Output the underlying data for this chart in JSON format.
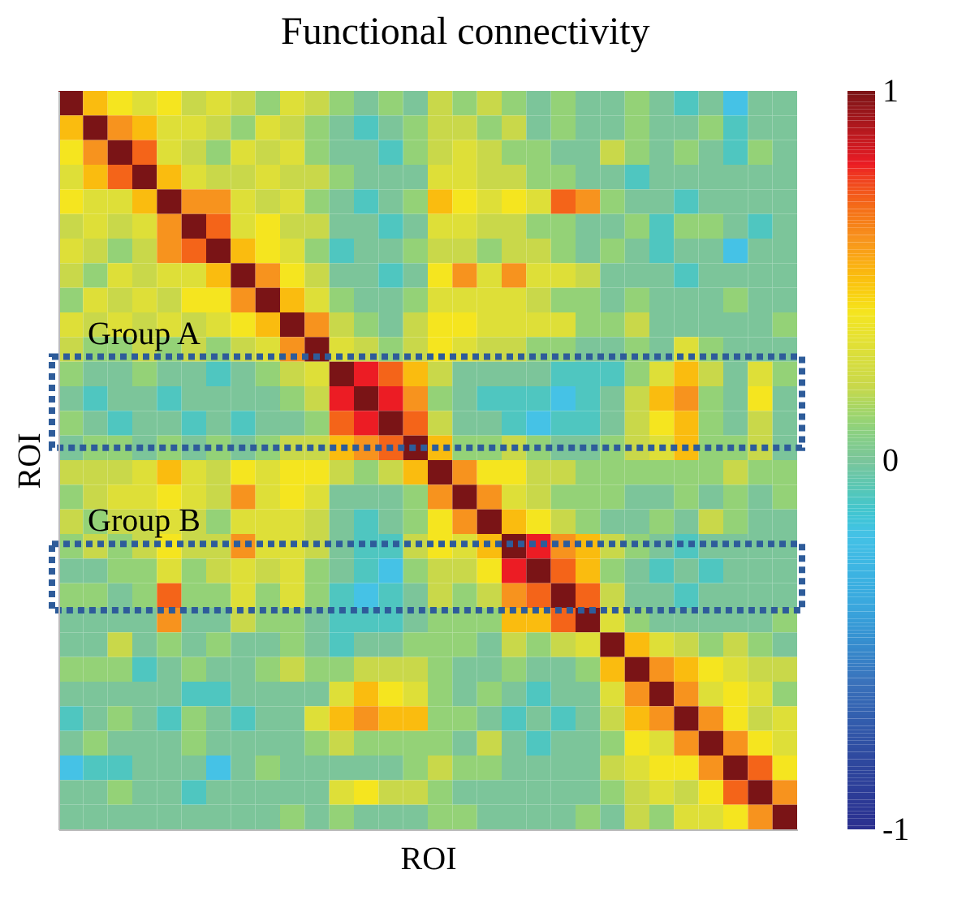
{
  "chart_data": {
    "type": "heatmap",
    "title": "Functional connectivity",
    "xlabel": "ROI",
    "ylabel": "ROI",
    "categories": [
      null,
      null,
      null,
      null,
      null,
      null,
      null,
      null,
      null,
      null,
      null,
      null,
      null,
      null,
      null,
      null,
      null,
      null,
      null,
      null,
      null,
      null,
      null,
      null,
      null,
      null,
      null,
      null,
      null,
      null
    ],
    "y_categories": [
      null,
      null,
      null,
      null,
      null,
      null,
      null,
      null,
      null,
      null,
      null,
      null,
      null,
      null,
      null,
      null,
      null,
      null,
      null,
      null,
      null,
      null,
      null,
      null,
      null,
      null,
      null,
      null,
      null,
      null
    ],
    "cells": [
      [
        1,
        0.5,
        0.4,
        0.3,
        0.4,
        0.2,
        0.3,
        0.2,
        0.1,
        0.3,
        0.2,
        0.1,
        0,
        0.1,
        0,
        0.2,
        0.1,
        0.2,
        0.1,
        0,
        0.1,
        0,
        0,
        0.1,
        0,
        -0.1,
        0,
        -0.2,
        0,
        0
      ],
      [
        0.5,
        1,
        0.6,
        0.5,
        0.3,
        0.3,
        0.2,
        0.1,
        0.3,
        0.2,
        0.1,
        0,
        -0.1,
        0,
        0.1,
        0.2,
        0.2,
        0.1,
        0.2,
        0,
        0.1,
        0,
        0,
        0.1,
        0,
        0,
        0.1,
        -0.1,
        0,
        0
      ],
      [
        0.4,
        0.6,
        1,
        0.7,
        0.3,
        0.2,
        0.1,
        0.3,
        0.2,
        0.3,
        0.1,
        0,
        0,
        -0.1,
        0.1,
        0.2,
        0.3,
        0.2,
        0.1,
        0.1,
        0,
        0,
        0.2,
        0.1,
        0,
        0.1,
        0,
        -0.1,
        0.1,
        0
      ],
      [
        0.3,
        0.5,
        0.7,
        1,
        0.5,
        0.3,
        0.2,
        0.2,
        0.3,
        0.2,
        0.2,
        0.1,
        0,
        0,
        0,
        0.3,
        0.3,
        0.2,
        0.2,
        0.1,
        0.1,
        0,
        0,
        -0.1,
        0,
        0,
        0,
        0,
        0,
        0
      ],
      [
        0.4,
        0.3,
        0.3,
        0.5,
        1,
        0.6,
        0.6,
        0.3,
        0.2,
        0.3,
        0.1,
        0,
        -0.1,
        0,
        0.1,
        0.5,
        0.4,
        0.3,
        0.4,
        0.3,
        0.7,
        0.6,
        0.1,
        0,
        0,
        -0.1,
        0,
        0,
        0,
        0
      ],
      [
        0.2,
        0.3,
        0.2,
        0.3,
        0.6,
        1,
        0.7,
        0.3,
        0.4,
        0.2,
        0.2,
        0,
        0,
        -0.1,
        0,
        0.3,
        0.3,
        0.2,
        0.2,
        0.1,
        0.1,
        0,
        0,
        0.1,
        -0.1,
        0.1,
        0.1,
        0,
        -0.1,
        0
      ],
      [
        0.3,
        0.2,
        0.1,
        0.2,
        0.6,
        0.7,
        1,
        0.5,
        0.4,
        0.3,
        0.1,
        -0.1,
        0,
        0,
        0.1,
        0.2,
        0.2,
        0.1,
        0.2,
        0.2,
        0.1,
        0,
        0.1,
        0,
        -0.1,
        0,
        0,
        -0.2,
        0,
        0
      ],
      [
        0.2,
        0.1,
        0.3,
        0.2,
        0.3,
        0.3,
        0.5,
        1,
        0.6,
        0.4,
        0.2,
        0,
        0,
        -0.1,
        0,
        0.4,
        0.6,
        0.3,
        0.6,
        0.3,
        0.3,
        0.2,
        0,
        0,
        0,
        -0.1,
        0,
        0,
        0,
        0
      ],
      [
        0.1,
        0.3,
        0.2,
        0.3,
        0.2,
        0.4,
        0.4,
        0.6,
        1,
        0.5,
        0.3,
        0.1,
        0,
        0,
        0.1,
        0.3,
        0.3,
        0.3,
        0.3,
        0.2,
        0.1,
        0.1,
        0,
        0.1,
        0,
        0,
        0,
        0.1,
        0,
        0
      ],
      [
        0.3,
        0.2,
        0.3,
        0.2,
        0.3,
        0.2,
        0.3,
        0.4,
        0.5,
        1,
        0.6,
        0.2,
        0.1,
        0,
        0.2,
        0.4,
        0.4,
        0.3,
        0.3,
        0.3,
        0.3,
        0.1,
        0.1,
        0.2,
        0,
        0,
        0,
        0,
        0,
        0.1
      ],
      [
        0.2,
        0.1,
        0.1,
        0.2,
        0.1,
        0.2,
        0.1,
        0.2,
        0.3,
        0.6,
        1,
        0.3,
        0.2,
        0.1,
        0.2,
        0.4,
        0.3,
        0.2,
        0.2,
        0.1,
        0.1,
        0,
        0,
        0.1,
        0,
        0.3,
        0.1,
        0,
        0,
        0
      ],
      [
        0.1,
        0,
        0,
        0.1,
        0,
        0,
        -0.1,
        0,
        0.1,
        0.2,
        0.3,
        1,
        0.8,
        0.7,
        0.5,
        0.2,
        0,
        0,
        0,
        0,
        -0.1,
        -0.1,
        -0.1,
        0.1,
        0.3,
        0.5,
        0.2,
        0,
        0.3,
        0.1
      ],
      [
        0,
        -0.1,
        0,
        0,
        -0.1,
        0,
        0,
        0,
        0,
        0.1,
        0.2,
        0.8,
        1,
        0.8,
        0.6,
        0.1,
        0,
        -0.1,
        -0.1,
        -0.1,
        -0.2,
        -0.1,
        0,
        0.2,
        0.5,
        0.6,
        0.1,
        0,
        0.4,
        0
      ],
      [
        0.1,
        0,
        -0.1,
        0,
        0,
        -0.1,
        0,
        -0.1,
        0,
        0,
        0.1,
        0.7,
        0.8,
        1,
        0.7,
        0.2,
        0,
        0,
        -0.1,
        -0.2,
        -0.1,
        -0.1,
        0,
        0.2,
        0.4,
        0.5,
        0.1,
        0,
        0.2,
        0
      ],
      [
        0,
        0.1,
        0.1,
        0,
        0.1,
        0,
        0.1,
        0,
        0.1,
        0.2,
        0.2,
        0.5,
        0.6,
        0.7,
        1,
        0.5,
        0.1,
        0.1,
        0.2,
        0.1,
        0,
        0,
        0.1,
        0.2,
        0.3,
        0.5,
        0.1,
        0.1,
        0.2,
        0
      ],
      [
        0.2,
        0.2,
        0.2,
        0.3,
        0.5,
        0.3,
        0.2,
        0.4,
        0.3,
        0.4,
        0.4,
        0.2,
        0.1,
        0.2,
        0.5,
        1,
        0.6,
        0.4,
        0.4,
        0.2,
        0.2,
        0.1,
        0.1,
        0.1,
        0.1,
        0.1,
        0.1,
        0.2,
        0.1,
        0.1
      ],
      [
        0.1,
        0.2,
        0.3,
        0.3,
        0.4,
        0.3,
        0.2,
        0.6,
        0.3,
        0.4,
        0.3,
        0,
        0,
        0,
        0.1,
        0.6,
        1,
        0.6,
        0.3,
        0.2,
        0.1,
        0.1,
        0.1,
        0,
        0,
        0.1,
        0,
        0.1,
        0,
        0.1
      ],
      [
        0.2,
        0.1,
        0.2,
        0.2,
        0.3,
        0.2,
        0.1,
        0.3,
        0.3,
        0.3,
        0.2,
        0,
        -0.1,
        0,
        0.1,
        0.4,
        0.6,
        1,
        0.5,
        0.4,
        0.2,
        0.1,
        0,
        0,
        0.1,
        0,
        0.2,
        0.1,
        0,
        0
      ],
      [
        0.1,
        0.2,
        0.1,
        0.2,
        0.4,
        0.2,
        0.2,
        0.6,
        0.3,
        0.3,
        0.2,
        0,
        -0.1,
        -0.1,
        0.2,
        0.4,
        0.3,
        0.5,
        1,
        0.8,
        0.6,
        0.5,
        0.2,
        0.1,
        0,
        -0.1,
        0,
        0,
        0,
        0
      ],
      [
        0,
        0,
        0.1,
        0.1,
        0.3,
        0.1,
        0.2,
        0.3,
        0.2,
        0.3,
        0.1,
        0,
        -0.1,
        -0.2,
        0.1,
        0.2,
        0.2,
        0.4,
        0.8,
        1,
        0.7,
        0.5,
        0.1,
        0,
        -0.1,
        0,
        -0.1,
        0,
        0,
        0
      ],
      [
        0.1,
        0.1,
        0,
        0.1,
        0.7,
        0.1,
        0.1,
        0.3,
        0.1,
        0.3,
        0.1,
        -0.1,
        -0.2,
        -0.1,
        0,
        0.2,
        0.1,
        0.2,
        0.6,
        0.7,
        1,
        0.7,
        0.2,
        0,
        0,
        -0.1,
        0,
        0,
        0,
        0
      ],
      [
        0,
        0,
        0,
        0,
        0.6,
        0,
        0,
        0.2,
        0.1,
        0.1,
        0,
        -0.1,
        -0.1,
        -0.1,
        0,
        0.1,
        0.1,
        0.1,
        0.5,
        0.5,
        0.7,
        1,
        0.3,
        0.1,
        0,
        0,
        0,
        0,
        0,
        0.1
      ],
      [
        0,
        0,
        0.2,
        0,
        0.1,
        0,
        0.1,
        0,
        0,
        0.1,
        0,
        -0.1,
        0,
        0,
        0.1,
        0.1,
        0.1,
        0,
        0.2,
        0.1,
        0.2,
        0.3,
        1,
        0.5,
        0.3,
        0.2,
        0.1,
        0.2,
        0.1,
        0
      ],
      [
        0.1,
        0.1,
        0.1,
        -0.1,
        0,
        0.1,
        0,
        0,
        0.1,
        0.2,
        0.1,
        0.1,
        0.2,
        0.2,
        0.2,
        0.1,
        0,
        0,
        0.1,
        0,
        0,
        0.1,
        0.5,
        1,
        0.6,
        0.5,
        0.4,
        0.3,
        0.2,
        0.2
      ],
      [
        0,
        0,
        0,
        0,
        0,
        -0.1,
        -0.1,
        0,
        0,
        0,
        0,
        0.3,
        0.5,
        0.4,
        0.3,
        0.1,
        0,
        0.1,
        0,
        -0.1,
        0,
        0,
        0.3,
        0.6,
        1,
        0.6,
        0.3,
        0.4,
        0.3,
        0.1
      ],
      [
        -0.1,
        0,
        0.1,
        0,
        -0.1,
        0.1,
        0,
        -0.1,
        0,
        0,
        0.3,
        0.5,
        0.6,
        0.5,
        0.5,
        0.1,
        0.1,
        0,
        -0.1,
        0,
        -0.1,
        0,
        0.2,
        0.5,
        0.6,
        1,
        0.6,
        0.4,
        0.2,
        0.3
      ],
      [
        0,
        0.1,
        0,
        0,
        0,
        0.1,
        0,
        0,
        0,
        0,
        0.1,
        0.2,
        0.1,
        0.1,
        0.1,
        0.1,
        0,
        0.2,
        0,
        -0.1,
        0,
        0,
        0.1,
        0.4,
        0.3,
        0.6,
        1,
        0.6,
        0.4,
        0.3
      ],
      [
        -0.2,
        -0.1,
        -0.1,
        0,
        0,
        0,
        -0.2,
        0,
        0.1,
        0,
        0,
        0,
        0,
        0,
        0.1,
        0.2,
        0.1,
        0.1,
        0,
        0,
        0,
        0,
        0.2,
        0.3,
        0.4,
        0.4,
        0.6,
        1,
        0.7,
        0.4
      ],
      [
        0,
        0,
        0.1,
        0,
        0,
        -0.1,
        0,
        0,
        0,
        0,
        0,
        0.3,
        0.4,
        0.2,
        0.2,
        0.1,
        0,
        0,
        0,
        0,
        0,
        0,
        0.1,
        0.2,
        0.3,
        0.2,
        0.4,
        0.7,
        1,
        0.6
      ],
      [
        0,
        0,
        0,
        0,
        0,
        0,
        0,
        0,
        0,
        0.1,
        0,
        0.1,
        0,
        0,
        0,
        0.1,
        0.1,
        0,
        0,
        0,
        0,
        0.1,
        0,
        0.2,
        0.1,
        0.3,
        0.3,
        0.4,
        0.6,
        1
      ]
    ],
    "clim": [
      -1,
      1
    ],
    "cticks": [
      -1,
      0,
      1
    ],
    "tick_labels": false,
    "grid": false,
    "annotations": [
      "Group A",
      "Group B"
    ]
  }
}
